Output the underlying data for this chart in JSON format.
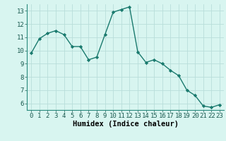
{
  "x": [
    0,
    1,
    2,
    3,
    4,
    5,
    6,
    7,
    8,
    9,
    10,
    11,
    12,
    13,
    14,
    15,
    16,
    17,
    18,
    19,
    20,
    21,
    22,
    23
  ],
  "y": [
    9.8,
    10.9,
    11.3,
    11.5,
    11.2,
    10.3,
    10.3,
    9.3,
    9.5,
    11.2,
    12.9,
    13.1,
    13.3,
    9.9,
    9.1,
    9.3,
    9.0,
    8.5,
    8.1,
    7.0,
    6.6,
    5.8,
    5.7,
    5.9
  ],
  "line_color": "#1a7a6e",
  "marker_color": "#1a7a6e",
  "background_color": "#d8f5f0",
  "grid_color": "#b8deda",
  "xlabel": "Humidex (Indice chaleur)",
  "ylim": [
    5.5,
    13.5
  ],
  "xlim": [
    -0.5,
    23.5
  ],
  "yticks": [
    6,
    7,
    8,
    9,
    10,
    11,
    12,
    13
  ],
  "xticks": [
    0,
    1,
    2,
    3,
    4,
    5,
    6,
    7,
    8,
    9,
    10,
    11,
    12,
    13,
    14,
    15,
    16,
    17,
    18,
    19,
    20,
    21,
    22,
    23
  ],
  "tick_fontsize": 6.5,
  "xlabel_fontsize": 7.5
}
